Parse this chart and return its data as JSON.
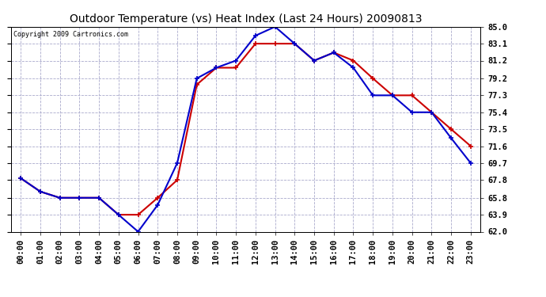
{
  "title": "Outdoor Temperature (vs) Heat Index (Last 24 Hours) 20090813",
  "copyright": "Copyright 2009 Cartronics.com",
  "hours": [
    "00:00",
    "01:00",
    "02:00",
    "03:00",
    "04:00",
    "05:00",
    "06:00",
    "07:00",
    "08:00",
    "09:00",
    "10:00",
    "11:00",
    "12:00",
    "13:00",
    "14:00",
    "15:00",
    "16:00",
    "17:00",
    "18:00",
    "19:00",
    "20:00",
    "21:00",
    "22:00",
    "23:00"
  ],
  "temp": [
    68.0,
    66.5,
    65.8,
    65.8,
    65.8,
    63.9,
    63.9,
    65.8,
    67.8,
    78.5,
    80.4,
    80.4,
    83.1,
    83.1,
    83.1,
    81.2,
    82.1,
    81.2,
    79.2,
    77.3,
    77.3,
    75.4,
    73.5,
    71.6
  ],
  "heat_index": [
    68.0,
    66.5,
    65.8,
    65.8,
    65.8,
    63.9,
    62.0,
    65.0,
    69.7,
    79.2,
    80.4,
    81.2,
    84.0,
    85.0,
    83.1,
    81.2,
    82.1,
    80.4,
    77.3,
    77.3,
    75.4,
    75.4,
    72.5,
    69.7
  ],
  "temp_color": "#cc0000",
  "heat_index_color": "#0000cc",
  "ylim": [
    62.0,
    85.0
  ],
  "yticks": [
    62.0,
    63.9,
    65.8,
    67.8,
    69.7,
    71.6,
    73.5,
    75.4,
    77.3,
    79.2,
    81.2,
    83.1,
    85.0
  ],
  "background_color": "#ffffff",
  "grid_color": "#aaaacc",
  "title_fontsize": 10,
  "tick_fontsize": 7.5,
  "marker": "+",
  "marker_size": 5,
  "linewidth": 1.5
}
